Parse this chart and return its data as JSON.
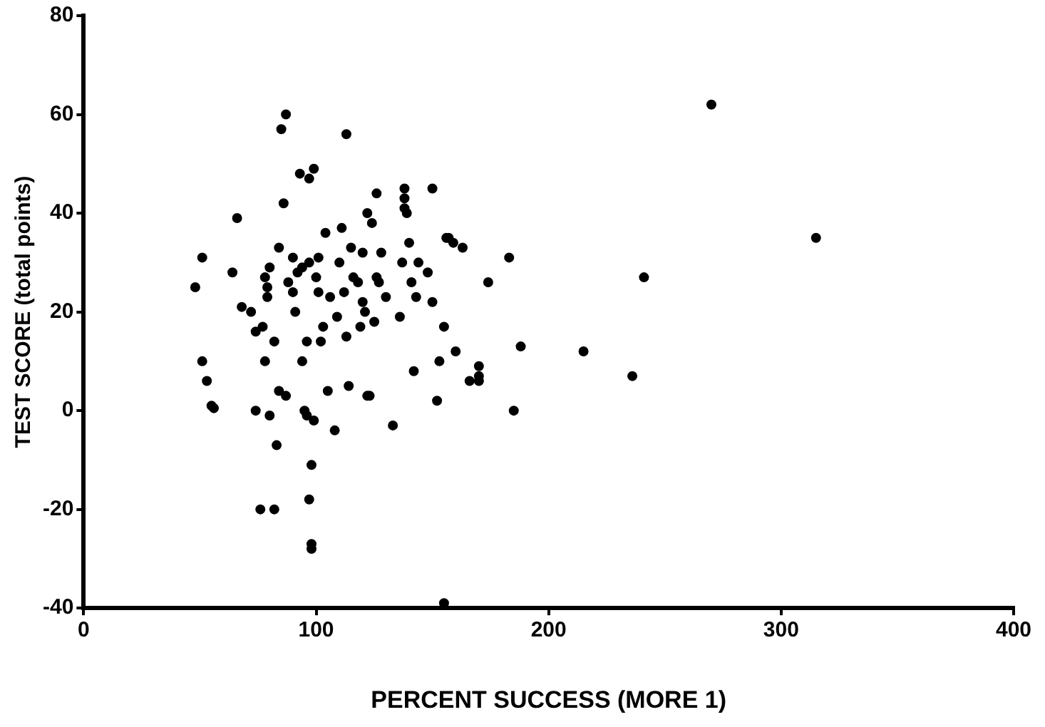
{
  "chart_data": {
    "type": "scatter",
    "xlabel": "PERCENT SUCCESS (MORE 1)",
    "ylabel": "TEST SCORE (total points)",
    "xlim": [
      0,
      400
    ],
    "xticks": [
      0,
      100,
      200,
      300,
      400
    ],
    "ylim": [
      -40,
      80
    ],
    "yticks": [
      -40,
      -20,
      0,
      20,
      40,
      60,
      80
    ],
    "grid": false,
    "legend": false,
    "marker": "circle",
    "series": [
      {
        "color": "#000000",
        "x": [
          48,
          51,
          51,
          53,
          55,
          56,
          64,
          66,
          68,
          72,
          74,
          74,
          76,
          77,
          78,
          78,
          79,
          79,
          80,
          80,
          82,
          82,
          83,
          84,
          84,
          85,
          86,
          87,
          87,
          88,
          90,
          90,
          91,
          92,
          93,
          94,
          94,
          95,
          96,
          96,
          97,
          97,
          97,
          98,
          98,
          98,
          99,
          99,
          100,
          101,
          101,
          102,
          103,
          104,
          105,
          106,
          108,
          109,
          110,
          111,
          112,
          113,
          113,
          114,
          115,
          116,
          118,
          119,
          120,
          120,
          121,
          122,
          122,
          123,
          124,
          125,
          126,
          126,
          127,
          128,
          130,
          133,
          136,
          137,
          138,
          138,
          138,
          139,
          140,
          141,
          142,
          143,
          144,
          148,
          150,
          150,
          152,
          153,
          155,
          155,
          156,
          157,
          159,
          160,
          163,
          166,
          170,
          170,
          170,
          174,
          183,
          185,
          188,
          215,
          236,
          241,
          270,
          315
        ],
        "values": [
          25,
          31,
          10,
          6,
          1,
          0.5,
          28,
          39,
          21,
          20,
          0,
          16,
          -20,
          17,
          10,
          27,
          23,
          25,
          29,
          -1,
          -20,
          14,
          -7,
          33,
          4,
          57,
          42,
          3,
          60,
          26,
          31,
          24,
          20,
          28,
          48,
          29,
          10,
          0,
          14,
          -1,
          30,
          47,
          -18,
          -11,
          -27,
          -28,
          -2,
          49,
          27,
          31,
          24,
          14,
          17,
          36,
          4,
          23,
          -4,
          19,
          30,
          37,
          24,
          15,
          56,
          5,
          33,
          27,
          26,
          17,
          22,
          32,
          20,
          40,
          3,
          3,
          38,
          18,
          27,
          44,
          26,
          32,
          23,
          -3,
          19,
          30,
          41,
          43,
          45,
          40,
          34,
          26,
          8,
          23,
          30,
          28,
          45,
          22,
          2,
          10,
          -39,
          17,
          35,
          35,
          34,
          12,
          33,
          6,
          9,
          6,
          7,
          26,
          31,
          0,
          13,
          12,
          7,
          27,
          62,
          35
        ]
      }
    ]
  }
}
